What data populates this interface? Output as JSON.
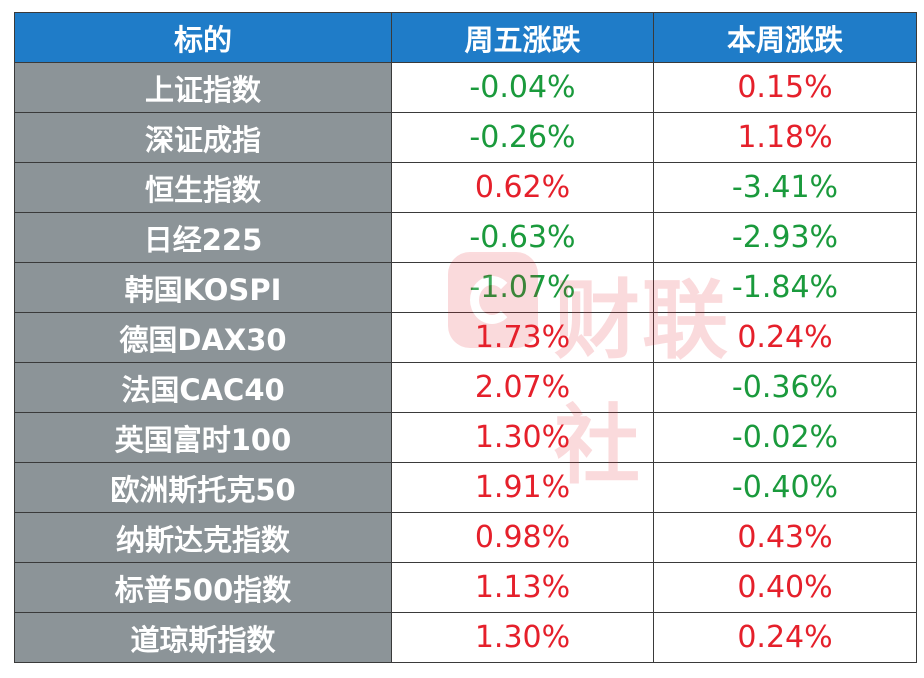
{
  "table": {
    "headers": [
      "标的",
      "周五涨跌",
      "本周涨跌"
    ],
    "rows": [
      {
        "name": "上证指数",
        "fri": "-0.04%",
        "week": "0.15%"
      },
      {
        "name": "深证成指",
        "fri": "-0.26%",
        "week": "1.18%"
      },
      {
        "name": "恒生指数",
        "fri": "0.62%",
        "week": "-3.41%"
      },
      {
        "name": "日经225",
        "fri": "-0.63%",
        "week": "-2.93%"
      },
      {
        "name": "韩国KOSPI",
        "fri": "-1.07%",
        "week": "-1.84%"
      },
      {
        "name": "德国DAX30",
        "fri": "1.73%",
        "week": "0.24%"
      },
      {
        "name": "法国CAC40",
        "fri": "2.07%",
        "week": "-0.36%"
      },
      {
        "name": "英国富时100",
        "fri": "1.30%",
        "week": "-0.02%"
      },
      {
        "name": "欧洲斯托克50",
        "fri": "1.91%",
        "week": "-0.40%"
      },
      {
        "name": "纳斯达克指数",
        "fri": "0.98%",
        "week": "0.43%"
      },
      {
        "name": "标普500指数",
        "fri": "1.13%",
        "week": "0.40%"
      },
      {
        "name": "道琼斯指数",
        "fri": "1.30%",
        "week": "0.24%"
      }
    ]
  },
  "colors": {
    "header_bg": "#1f7cc8",
    "name_bg": "#8c9498",
    "up": "#e5202b",
    "down": "#1a9a3c"
  },
  "watermark": {
    "text": "财联社",
    "icon": "cailianshe-logo-icon"
  }
}
